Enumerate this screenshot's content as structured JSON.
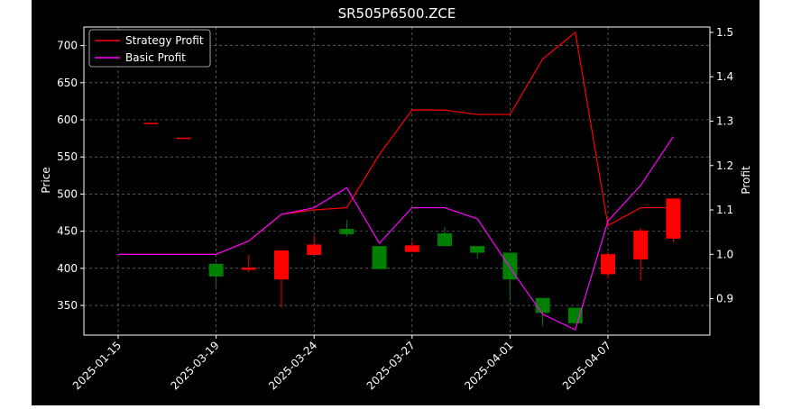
{
  "chart_data": {
    "type": "candlestick",
    "title": "SR505P6500.ZCE",
    "xlabel": "",
    "ylabel": "Price",
    "y2label": "Profit",
    "ylim": [
      310,
      725
    ],
    "y2lim": [
      0.818,
      1.512
    ],
    "yticks": [
      350,
      400,
      450,
      500,
      550,
      600,
      650,
      700
    ],
    "y2ticks": [
      0.9,
      1.0,
      1.1,
      1.2,
      1.3,
      1.4,
      1.5
    ],
    "x_tick_labels": [
      "2025-01-15",
      "2025-03-19",
      "2025-03-24",
      "2025-03-27",
      "2025-04-01",
      "2025-04-07"
    ],
    "grid": true,
    "legend_position": "top-left",
    "up_color": "#ff0000",
    "down_color": "#008000",
    "candles": [
      {
        "open": null,
        "high": null,
        "low": null,
        "close": null
      },
      {
        "open": 596,
        "high": 596,
        "low": 595,
        "close": 596
      },
      {
        "open": 576,
        "high": 576,
        "low": 575,
        "close": 576
      },
      {
        "open": 406,
        "high": 407,
        "low": 376,
        "close": 389
      },
      {
        "open": 398,
        "high": 418,
        "low": 395,
        "close": 401
      },
      {
        "open": 385,
        "high": 424,
        "low": 347,
        "close": 424
      },
      {
        "open": 418,
        "high": 444,
        "low": 418,
        "close": 432
      },
      {
        "open": 453,
        "high": 465,
        "low": 443,
        "close": 446
      },
      {
        "open": 430,
        "high": 430,
        "low": 398,
        "close": 399
      },
      {
        "open": 422,
        "high": 436,
        "low": 422,
        "close": 431
      },
      {
        "open": 447,
        "high": 456,
        "low": 430,
        "close": 430
      },
      {
        "open": 430,
        "high": 430,
        "low": 413,
        "close": 421
      },
      {
        "open": 421,
        "high": 421,
        "low": 356,
        "close": 385
      },
      {
        "open": 360,
        "high": 360,
        "low": 322,
        "close": 340
      },
      {
        "open": 347,
        "high": 347,
        "low": 325,
        "close": 326
      },
      {
        "open": 392,
        "high": 422,
        "low": 386,
        "close": 419
      },
      {
        "open": 412,
        "high": 454,
        "low": 384,
        "close": 451
      },
      {
        "open": 440,
        "high": 494,
        "low": 435,
        "close": 494
      }
    ],
    "series": [
      {
        "name": "Strategy Profit",
        "color": "#ff0000",
        "axis": "right",
        "values": [
          1.0,
          1.0,
          1.0,
          1.0,
          1.03,
          1.09,
          1.1,
          1.105,
          1.225,
          1.325,
          1.325,
          1.315,
          1.315,
          1.44,
          1.5,
          1.065,
          1.105,
          1.105
        ]
      },
      {
        "name": "Basic Profit",
        "color": "#ff00ff",
        "axis": "right",
        "values": [
          1.0,
          1.0,
          1.0,
          1.0,
          1.03,
          1.09,
          1.105,
          1.15,
          1.025,
          1.105,
          1.105,
          1.08,
          0.97,
          0.865,
          0.83,
          1.075,
          1.155,
          1.265
        ]
      }
    ]
  }
}
